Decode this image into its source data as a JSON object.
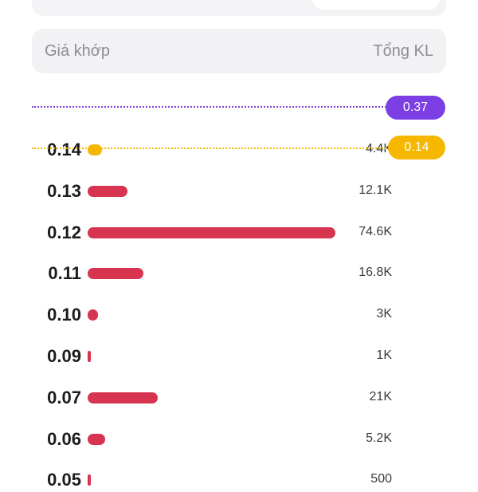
{
  "header": {
    "price_label": "Giá khớp",
    "volume_label": "Tổng KL"
  },
  "reference_lines": {
    "upper_badge": "0.37",
    "current_badge": "0.14"
  },
  "colors": {
    "purple_line": "#7b3fe4",
    "yellow_line": "#f5b700",
    "bar": "#d7344f"
  },
  "max_volume": 74600,
  "rows": [
    {
      "price": "0.14",
      "volume_label": "4.4K",
      "volume": 4400,
      "highlight": true
    },
    {
      "price": "0.13",
      "volume_label": "12.1K",
      "volume": 12100
    },
    {
      "price": "0.12",
      "volume_label": "74.6K",
      "volume": 74600
    },
    {
      "price": "0.11",
      "volume_label": "16.8K",
      "volume": 16800
    },
    {
      "price": "0.10",
      "volume_label": "3K",
      "volume": 3000
    },
    {
      "price": "0.09",
      "volume_label": "1K",
      "volume": 1000
    },
    {
      "price": "0.07",
      "volume_label": "21K",
      "volume": 21000
    },
    {
      "price": "0.06",
      "volume_label": "5.2K",
      "volume": 5200
    },
    {
      "price": "0.05",
      "volume_label": "500",
      "volume": 500
    }
  ]
}
